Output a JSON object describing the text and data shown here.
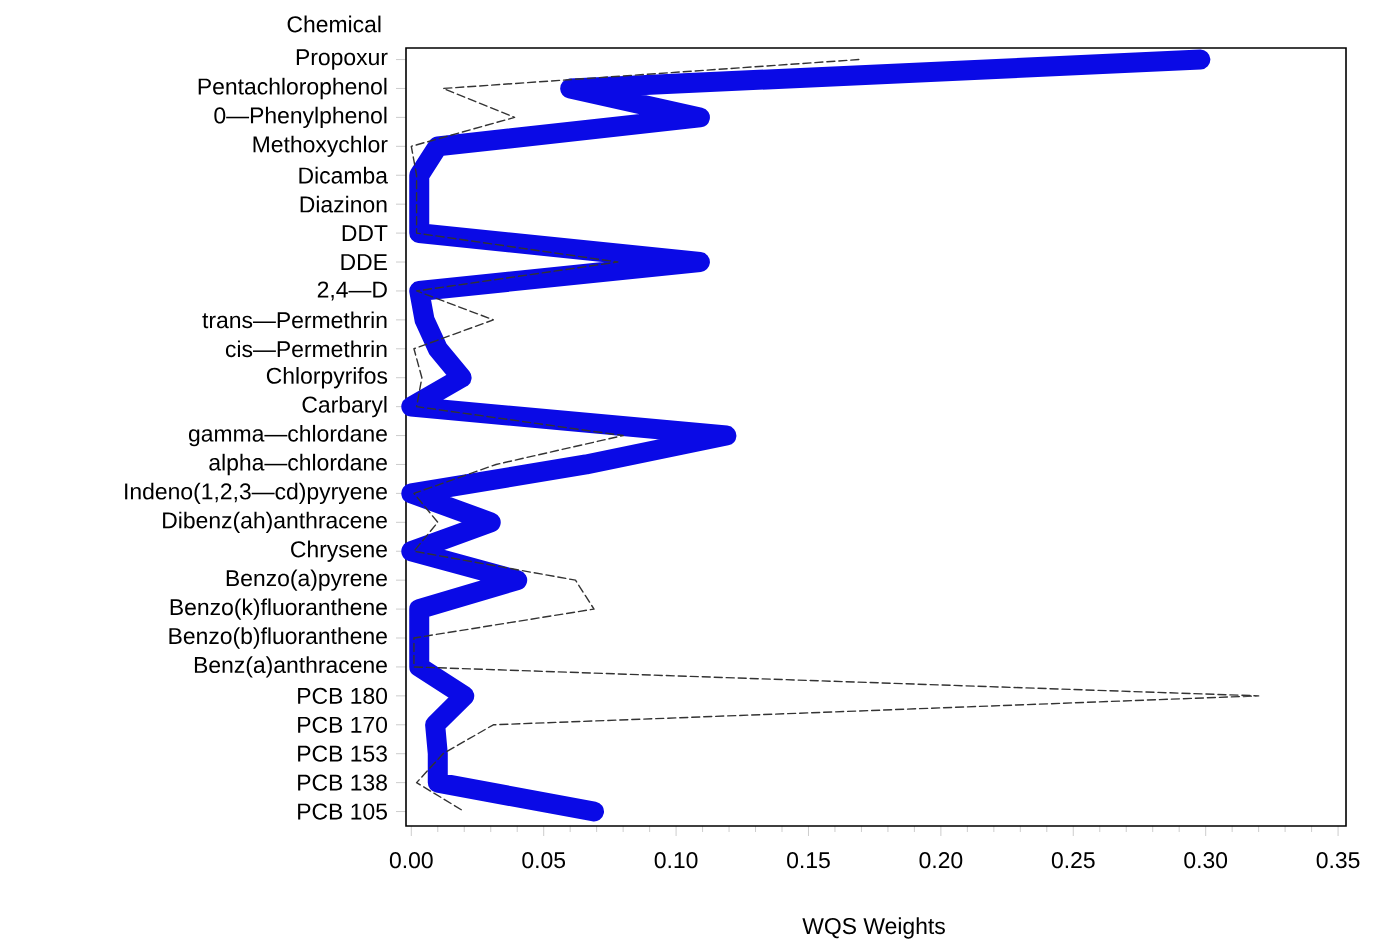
{
  "chart_data": {
    "type": "line",
    "orientation": "horizontal",
    "ylabel": "Chemical",
    "xlabel": "WQS Weights",
    "categories": [
      "Propoxur",
      "Pentachlorophenol",
      "0—Phenylphenol",
      "Methoxychlor",
      "Dicamba",
      "Diazinon",
      "DDT",
      "DDE",
      "2,4—D",
      "trans—Permethrin",
      "cis—Permethrin",
      "Chlorpyrifos",
      "Carbaryl",
      "gamma—chlordane",
      "alpha—chlordane",
      "Indeno(1,2,3—cd)pyryene",
      "Dibenz(ah)anthracene",
      "Chrysene",
      "Benzo(a)pyrene",
      "Benzo(k)fluoranthene",
      "Benzo(b)fluoranthene",
      "Benz(a)anthracene",
      "PCB  180",
      "PCB  170",
      "PCB  153",
      "PCB  138",
      "PCB  105"
    ],
    "series": [
      {
        "color": "#0a0ae6",
        "line_style": "solid",
        "values": [
          0.298,
          0.06,
          0.109,
          0.01,
          0.003,
          0.003,
          0.003,
          0.109,
          0.003,
          0.005,
          0.01,
          0.019,
          0.0,
          0.119,
          0.066,
          0.0,
          0.03,
          0.0,
          0.04,
          0.003,
          0.003,
          0.003,
          0.02,
          0.009,
          0.01,
          0.01,
          0.069
        ]
      },
      {
        "color": "#333333",
        "line_style": "dashed",
        "values": [
          0.169,
          0.012,
          0.039,
          0.0,
          0.002,
          0.002,
          0.002,
          0.078,
          0.002,
          0.031,
          0.001,
          0.004,
          0.002,
          0.08,
          0.032,
          0.001,
          0.01,
          0.001,
          0.062,
          0.069,
          0.001,
          0.001,
          0.32,
          0.031,
          0.012,
          0.002,
          0.02
        ]
      }
    ],
    "xlim": [
      -0.002,
      0.353
    ],
    "xticks": [
      {
        "value": 0,
        "label": "0.00"
      },
      {
        "value": 0.05,
        "label": "0.05"
      },
      {
        "value": 0.1,
        "label": "0.10"
      },
      {
        "value": 0.15,
        "label": "0.15"
      },
      {
        "value": 0.2,
        "label": "0.20"
      },
      {
        "value": 0.25,
        "label": "0.25"
      },
      {
        "value": 0.3,
        "label": "0.30"
      },
      {
        "value": 0.35,
        "label": "0.35"
      }
    ],
    "marker": "none"
  }
}
